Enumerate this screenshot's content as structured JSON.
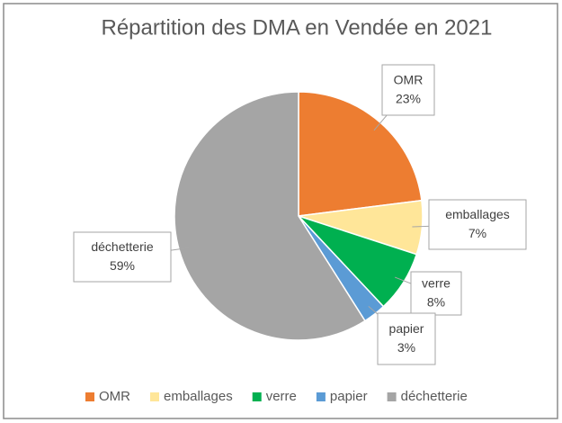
{
  "chart_data": {
    "type": "pie",
    "title": "Répartition des DMA en Vendée en 2021",
    "categories": [
      "OMR",
      "emballages",
      "verre",
      "papier",
      "déchetterie"
    ],
    "values": [
      23,
      7,
      8,
      3,
      59
    ],
    "value_labels": [
      "23%",
      "7%",
      "8%",
      "3%",
      "59%"
    ],
    "colors": [
      "#ED7D31",
      "#FFE699",
      "#00B050",
      "#5B9BD5",
      "#A5A5A5"
    ],
    "legend": "bottom"
  }
}
